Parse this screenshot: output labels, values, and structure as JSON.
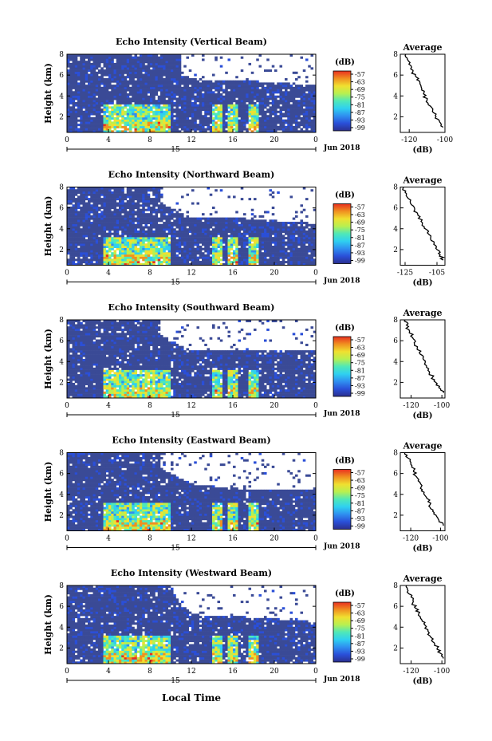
{
  "figure": {
    "xlabel": "Local Time",
    "date_label": "Jun 2018",
    "day_label": "15",
    "colorbar_unit": "(dB)",
    "colorbar_ticks": [
      "-57",
      "-63",
      "-69",
      "-75",
      "-81",
      "-87",
      "-93",
      "-99"
    ],
    "colormap": [
      "#2b2f8f",
      "#2a4fd8",
      "#2f8ff0",
      "#2fd0f0",
      "#4fe8b8",
      "#b8f050",
      "#f0e030",
      "#f09020",
      "#e83020"
    ],
    "no_data_color": "#ffffff",
    "background_color": "#3a4a96"
  },
  "panels": [
    {
      "title": "Echo Intensity (Vertical Beam)",
      "ylabel": "Height (km)",
      "avg_title": "Average",
      "avg_xlabel": "(dB)",
      "avg_xticks": [
        "-120",
        "-100"
      ]
    },
    {
      "title": "Echo Intensity (Northward Beam)",
      "ylabel": "Height (km)",
      "avg_title": "Average",
      "avg_xlabel": "(dB)",
      "avg_xticks": [
        "-125",
        "-105"
      ]
    },
    {
      "title": "Echo Intensity (Southward Beam)",
      "ylabel": "Height (km)",
      "avg_title": "Average",
      "avg_xlabel": "(dB)",
      "avg_xticks": [
        "-120",
        "-100"
      ]
    },
    {
      "title": "Echo Intensity (Eastward Beam)",
      "ylabel": "Height (km)",
      "avg_title": "Average",
      "avg_xlabel": "(dB)",
      "avg_xticks": [
        "-120",
        "-100"
      ]
    },
    {
      "title": "Echo Intensity (Westward Beam)",
      "ylabel": "Height (km)",
      "avg_title": "Average",
      "avg_xlabel": "(dB)",
      "avg_xticks": [
        "-120",
        "-100"
      ]
    }
  ],
  "chart_data": [
    {
      "type": "heatmap",
      "title": "Echo Intensity (Vertical Beam)",
      "xlabel": "Local Time",
      "ylabel": "Height (km)",
      "x_ticks": [
        "0",
        "4",
        "8",
        "12",
        "16",
        "20",
        "0"
      ],
      "y_ticks": [
        "2",
        "4",
        "6",
        "8"
      ],
      "xlim": [
        0,
        24
      ],
      "ylim": [
        0.5,
        8
      ],
      "colorbar": {
        "label": "(dB)",
        "range": [
          -99,
          -57
        ],
        "ticks": [
          -57,
          -63,
          -69,
          -75,
          -81,
          -87,
          -93,
          -99
        ]
      },
      "melting_layer_km": 3.0,
      "data_top_km": [
        [
          0,
          8
        ],
        [
          11,
          8
        ],
        [
          11,
          6
        ],
        [
          13,
          5.5
        ],
        [
          17,
          5.5
        ],
        [
          24,
          5
        ]
      ],
      "rain_periods_h": [
        [
          3.5,
          10
        ],
        [
          14,
          15
        ],
        [
          15.5,
          16.5
        ],
        [
          17.5,
          18.5
        ]
      ]
    },
    {
      "type": "line",
      "title": "Average",
      "xlabel": "(dB)",
      "x_ticks": [
        "-120",
        "-100"
      ],
      "y_ticks": [
        "2",
        "4",
        "6",
        "8"
      ],
      "xlim": [
        -125,
        -100
      ],
      "ylim": [
        0.5,
        8
      ],
      "x": [
        -122,
        -121,
        -119,
        -118,
        -116,
        -114,
        -113,
        -112,
        -110,
        -108,
        -107,
        -105,
        -103,
        -101
      ],
      "y": [
        8.0,
        7.5,
        6.9,
        6.3,
        5.8,
        5.3,
        4.7,
        4.2,
        3.6,
        3.0,
        2.5,
        2.0,
        1.5,
        1.0
      ]
    },
    {
      "type": "heatmap",
      "title": "Echo Intensity (Northward Beam)",
      "xlabel": "Local Time",
      "ylabel": "Height (km)",
      "x_ticks": [
        "0",
        "4",
        "8",
        "12",
        "16",
        "20",
        "0"
      ],
      "y_ticks": [
        "2",
        "4",
        "6",
        "8"
      ],
      "xlim": [
        0,
        24
      ],
      "ylim": [
        0.5,
        8
      ],
      "colorbar": {
        "label": "(dB)",
        "range": [
          -99,
          -57
        ],
        "ticks": [
          -57,
          -63,
          -69,
          -75,
          -81,
          -87,
          -93,
          -99
        ]
      },
      "melting_layer_km": 3.0,
      "data_top_km": [
        [
          0,
          8
        ],
        [
          9,
          8
        ],
        [
          9,
          6.5
        ],
        [
          12,
          5
        ],
        [
          17,
          5
        ],
        [
          24,
          4.5
        ]
      ],
      "rain_periods_h": [
        [
          3.5,
          10
        ],
        [
          14,
          15
        ],
        [
          15.5,
          16.5
        ],
        [
          17.5,
          18.5
        ]
      ]
    },
    {
      "type": "line",
      "title": "Average",
      "xlabel": "(dB)",
      "x_ticks": [
        "-125",
        "-105"
      ],
      "y_ticks": [
        "2",
        "4",
        "6",
        "8"
      ],
      "xlim": [
        -128,
        -100
      ],
      "ylim": [
        0.5,
        8
      ],
      "x": [
        -126,
        -125,
        -123,
        -121,
        -119,
        -117,
        -115,
        -113,
        -111,
        -109,
        -107,
        -105,
        -103,
        -101
      ],
      "y": [
        8.0,
        7.5,
        6.9,
        6.3,
        5.8,
        5.3,
        4.7,
        4.2,
        3.6,
        3.0,
        2.5,
        2.0,
        1.5,
        1.0
      ]
    },
    {
      "type": "heatmap",
      "title": "Echo Intensity (Southward Beam)",
      "xlabel": "Local Time",
      "ylabel": "Height (km)",
      "x_ticks": [
        "0",
        "4",
        "8",
        "12",
        "16",
        "20",
        "0"
      ],
      "y_ticks": [
        "2",
        "4",
        "6",
        "8"
      ],
      "xlim": [
        0,
        24
      ],
      "ylim": [
        0.5,
        8
      ],
      "colorbar": {
        "label": "(dB)",
        "range": [
          -99,
          -57
        ],
        "ticks": [
          -57,
          -63,
          -69,
          -75,
          -81,
          -87,
          -93,
          -99
        ]
      },
      "melting_layer_km": 3.0,
      "data_top_km": [
        [
          0,
          8
        ],
        [
          9,
          8
        ],
        [
          9,
          6.5
        ],
        [
          12,
          5
        ],
        [
          17,
          5
        ],
        [
          24,
          5
        ]
      ],
      "rain_periods_h": [
        [
          3.5,
          10
        ],
        [
          14,
          15
        ],
        [
          15.5,
          16.5
        ],
        [
          17.5,
          18.5
        ]
      ]
    },
    {
      "type": "line",
      "title": "Average",
      "xlabel": "(dB)",
      "x_ticks": [
        "-120",
        "-100"
      ],
      "y_ticks": [
        "2",
        "4",
        "6",
        "8"
      ],
      "xlim": [
        -127,
        -98
      ],
      "ylim": [
        0.5,
        8
      ],
      "x": [
        -124,
        -123,
        -121,
        -119,
        -118,
        -116,
        -114,
        -112,
        -110,
        -108,
        -106,
        -104,
        -102,
        -99
      ],
      "y": [
        8.0,
        7.5,
        6.9,
        6.3,
        5.8,
        5.3,
        4.7,
        4.2,
        3.6,
        3.0,
        2.5,
        2.0,
        1.5,
        1.0
      ]
    },
    {
      "type": "heatmap",
      "title": "Echo Intensity (Eastward Beam)",
      "xlabel": "Local Time",
      "ylabel": "Height (km)",
      "x_ticks": [
        "0",
        "4",
        "8",
        "12",
        "16",
        "20",
        "0"
      ],
      "y_ticks": [
        "2",
        "4",
        "6",
        "8"
      ],
      "xlim": [
        0,
        24
      ],
      "ylim": [
        0.5,
        8
      ],
      "colorbar": {
        "label": "(dB)",
        "range": [
          -99,
          -57
        ],
        "ticks": [
          -57,
          -63,
          -69,
          -75,
          -81,
          -87,
          -93,
          -99
        ]
      },
      "melting_layer_km": 3.0,
      "data_top_km": [
        [
          0,
          8
        ],
        [
          9,
          8
        ],
        [
          9,
          6.5
        ],
        [
          12,
          5
        ],
        [
          17,
          4.5
        ],
        [
          24,
          4.5
        ]
      ],
      "rain_periods_h": [
        [
          3.5,
          10
        ],
        [
          14,
          15
        ],
        [
          15.5,
          16.5
        ],
        [
          17.5,
          18.5
        ]
      ]
    },
    {
      "type": "line",
      "title": "Average",
      "xlabel": "(dB)",
      "x_ticks": [
        "-120",
        "-100"
      ],
      "y_ticks": [
        "2",
        "4",
        "6",
        "8"
      ],
      "xlim": [
        -127,
        -97
      ],
      "ylim": [
        0.5,
        8
      ],
      "x": [
        -124,
        -122,
        -120,
        -118,
        -117,
        -115,
        -113,
        -111,
        -109,
        -107,
        -105,
        -103,
        -101,
        -98
      ],
      "y": [
        8.0,
        7.5,
        6.9,
        6.3,
        5.8,
        5.3,
        4.7,
        4.2,
        3.6,
        3.0,
        2.5,
        2.0,
        1.5,
        1.0
      ]
    },
    {
      "type": "heatmap",
      "title": "Echo Intensity (Westward Beam)",
      "xlabel": "Local Time",
      "ylabel": "Height (km)",
      "x_ticks": [
        "0",
        "4",
        "8",
        "12",
        "16",
        "20",
        "0"
      ],
      "y_ticks": [
        "2",
        "4",
        "6",
        "8"
      ],
      "xlim": [
        0,
        24
      ],
      "ylim": [
        0.5,
        8
      ],
      "colorbar": {
        "label": "(dB)",
        "range": [
          -99,
          -57
        ],
        "ticks": [
          -57,
          -63,
          -69,
          -75,
          -81,
          -87,
          -93,
          -99
        ]
      },
      "melting_layer_km": 3.0,
      "data_top_km": [
        [
          0,
          8
        ],
        [
          10,
          8
        ],
        [
          11,
          6
        ],
        [
          13,
          5
        ],
        [
          17,
          5
        ],
        [
          24,
          4.5
        ]
      ],
      "rain_periods_h": [
        [
          3.5,
          10
        ],
        [
          14,
          15
        ],
        [
          15.5,
          16.5
        ],
        [
          17.5,
          18.5
        ]
      ]
    },
    {
      "type": "line",
      "title": "Average",
      "xlabel": "(dB)",
      "x_ticks": [
        "-120",
        "-100"
      ],
      "y_ticks": [
        "2",
        "4",
        "6",
        "8"
      ],
      "xlim": [
        -127,
        -98
      ],
      "ylim": [
        0.5,
        8
      ],
      "x": [
        -123,
        -122,
        -120,
        -119,
        -117,
        -115,
        -113,
        -111,
        -109,
        -107,
        -105,
        -103,
        -101,
        -99
      ],
      "y": [
        8.0,
        7.5,
        6.9,
        6.3,
        5.8,
        5.3,
        4.7,
        4.2,
        3.6,
        3.0,
        2.5,
        2.0,
        1.5,
        1.0
      ]
    }
  ]
}
